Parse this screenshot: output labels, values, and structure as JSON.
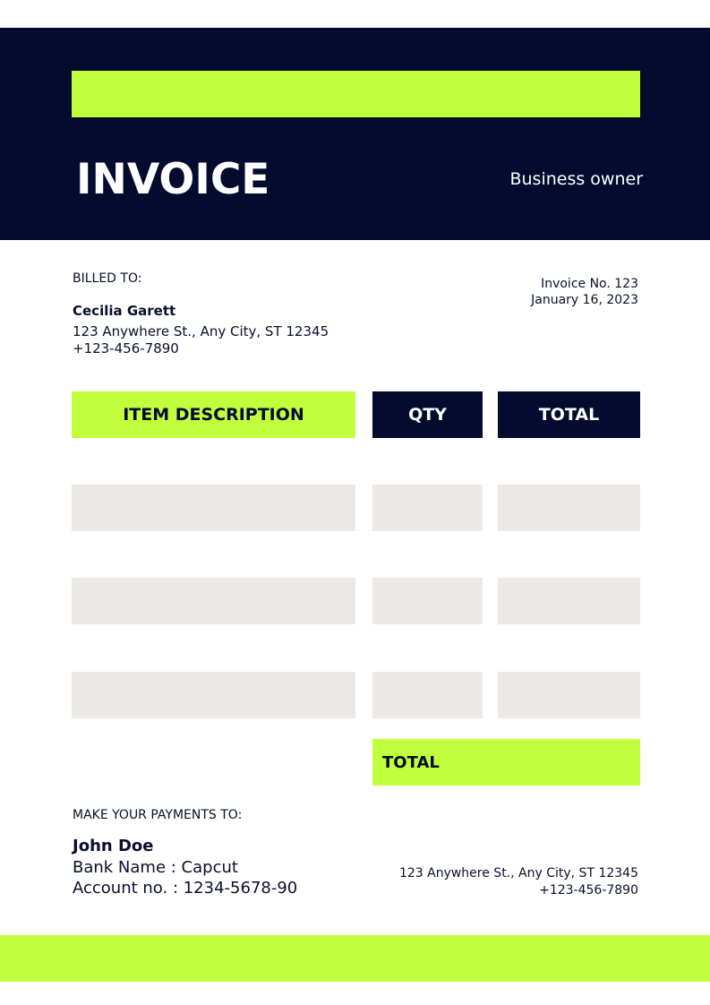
{
  "header": {
    "title": "INVOICE",
    "subtitle": "Business owner"
  },
  "billed_to": {
    "label": "BILLED TO:",
    "name": "Cecilia Garett",
    "address": "123 Anywhere St., Any City, ST 12345",
    "phone": "+123-456-7890"
  },
  "invoice": {
    "number": "Invoice No. 123",
    "date": "January 16, 2023"
  },
  "table": {
    "headers": [
      "ITEM DESCRIPTION",
      "QTY",
      "TOTAL"
    ],
    "total_label": "TOTAL"
  },
  "payment": {
    "label": "MAKE YOUR PAYMENTS TO:",
    "name": "John Doe",
    "bank": "Bank Name : Capcut",
    "account": "Account no. : 1234-5678-90"
  },
  "contact": {
    "address": "123 Anywhere St., Any City, ST 12345",
    "phone": "+123-456-7890"
  },
  "colors": {
    "navy": "#050b2e",
    "lime": "#c1ff3c",
    "row": "#ece8e6"
  }
}
